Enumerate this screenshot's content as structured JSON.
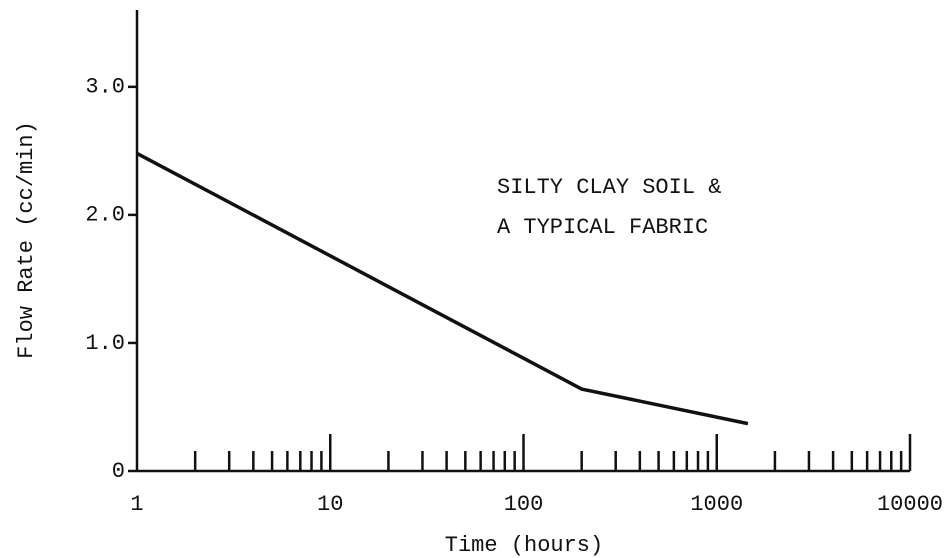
{
  "chart_data": {
    "type": "line",
    "xlabel": "Time (hours)",
    "ylabel": "Flow Rate (cc/min)",
    "annotations": [
      "SILTY CLAY SOIL &",
      "A TYPICAL FABRIC"
    ],
    "x": [
      1,
      200,
      1450
    ],
    "series": [
      {
        "name": null,
        "color": "#111111",
        "values": [
          2.48,
          0.64,
          0.37
        ]
      }
    ],
    "xlim": [
      1,
      10000
    ],
    "xticks": [
      1,
      10,
      100,
      1000,
      10000
    ],
    "xscale": "log",
    "ylim": [
      0,
      3.6
    ],
    "yticks": [
      0,
      {
        "value": 1,
        "label": "1.0"
      },
      {
        "value": 2,
        "label": "2.0"
      },
      {
        "value": 3,
        "label": "3.0"
      }
    ],
    "grid": false
  }
}
